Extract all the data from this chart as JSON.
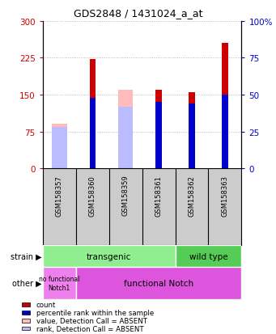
{
  "title": "GDS2848 / 1431024_a_at",
  "samples": [
    "GSM158357",
    "GSM158360",
    "GSM158359",
    "GSM158361",
    "GSM158362",
    "GSM158363"
  ],
  "red_bars": [
    0,
    222,
    0,
    160,
    155,
    255
  ],
  "pink_bars": [
    90,
    0,
    160,
    0,
    0,
    0
  ],
  "blue_bars_pct": [
    0,
    48,
    0,
    45,
    44,
    50
  ],
  "lightblue_bars_pct": [
    28,
    0,
    42,
    0,
    0,
    0
  ],
  "ylim_left": [
    0,
    300
  ],
  "ylim_right": [
    0,
    100
  ],
  "left_ticks": [
    0,
    75,
    150,
    225,
    300
  ],
  "right_ticks": [
    0,
    25,
    50,
    75,
    100
  ],
  "left_tick_color": "#cc0000",
  "right_tick_color": "#0000cc",
  "grid_color": "#aaaaaa",
  "red_bar_width": 0.18,
  "wide_bar_width": 0.45,
  "strain_transgenic_color": "#90ee90",
  "strain_wildtype_color": "#55cc55",
  "other_nofunc_color": "#ee80ee",
  "other_func_color": "#dd55dd",
  "sample_box_color": "#cccccc",
  "legend_items": [
    {
      "color": "#cc0000",
      "label": "count"
    },
    {
      "color": "#0000cc",
      "label": "percentile rank within the sample"
    },
    {
      "color": "#ffbbbb",
      "label": "value, Detection Call = ABSENT"
    },
    {
      "color": "#bbbbff",
      "label": "rank, Detection Call = ABSENT"
    }
  ],
  "bg_color": "#ffffff"
}
